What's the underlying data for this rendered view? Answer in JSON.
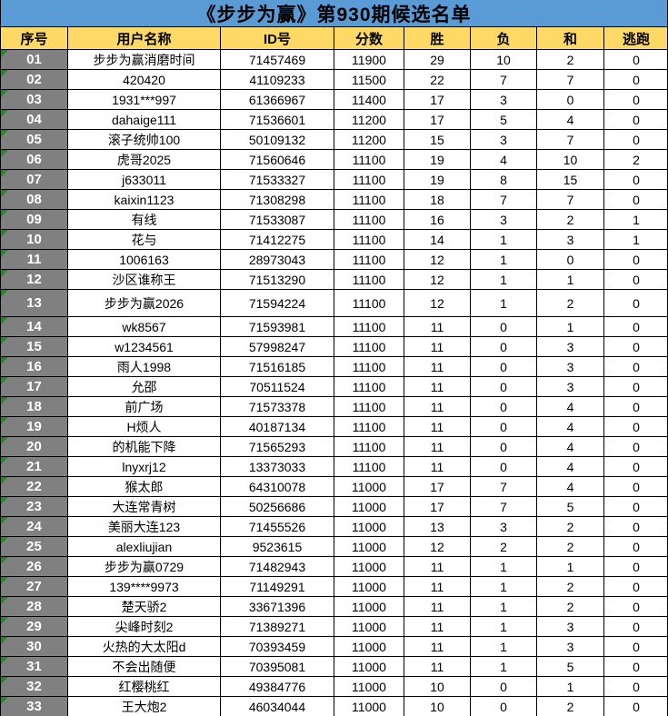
{
  "title": "《步步为赢》第930期候选名单",
  "columns": [
    "序号",
    "用户名称",
    "ID号",
    "分数",
    "胜",
    "负",
    "和",
    "逃跑"
  ],
  "colors": {
    "title_bg": "#5B9BD5",
    "header_bg": "#FFD966",
    "index_bg": "#808080",
    "index_text": "#FFFFFF",
    "flag_green": "#228B22",
    "border": "#000000"
  },
  "rows": [
    {
      "no": "01",
      "name": "步步为赢消磨时间",
      "id": "71457469",
      "score": "11900",
      "win": "29",
      "loss": "10",
      "draw": "2",
      "flee": "0"
    },
    {
      "no": "02",
      "name": "420420",
      "id": "41109233",
      "score": "11500",
      "win": "22",
      "loss": "7",
      "draw": "7",
      "flee": "0"
    },
    {
      "no": "03",
      "name": "1931***997",
      "id": "61366967",
      "score": "11400",
      "win": "17",
      "loss": "3",
      "draw": "0",
      "flee": "0"
    },
    {
      "no": "04",
      "name": "dahaige111",
      "id": "71536601",
      "score": "11200",
      "win": "17",
      "loss": "5",
      "draw": "4",
      "flee": "0"
    },
    {
      "no": "05",
      "name": "滚子统帅100",
      "id": "50109132",
      "score": "11200",
      "win": "15",
      "loss": "3",
      "draw": "7",
      "flee": "0"
    },
    {
      "no": "06",
      "name": "虎哥2025",
      "id": "71560646",
      "score": "11100",
      "win": "19",
      "loss": "4",
      "draw": "10",
      "flee": "2"
    },
    {
      "no": "07",
      "name": "j633011",
      "id": "71533327",
      "score": "11100",
      "win": "19",
      "loss": "8",
      "draw": "15",
      "flee": "0"
    },
    {
      "no": "08",
      "name": "kaixin1123",
      "id": "71308298",
      "score": "11100",
      "win": "18",
      "loss": "7",
      "draw": "7",
      "flee": "0"
    },
    {
      "no": "09",
      "name": "有线",
      "id": "71533087",
      "score": "11100",
      "win": "16",
      "loss": "3",
      "draw": "2",
      "flee": "1"
    },
    {
      "no": "10",
      "name": "花与",
      "id": "71412275",
      "score": "11100",
      "win": "14",
      "loss": "1",
      "draw": "3",
      "flee": "1"
    },
    {
      "no": "11",
      "name": "1006163",
      "id": "28973043",
      "score": "11100",
      "win": "12",
      "loss": "1",
      "draw": "0",
      "flee": "0"
    },
    {
      "no": "12",
      "name": "沙区谁称王",
      "id": "71513290",
      "score": "11100",
      "win": "12",
      "loss": "1",
      "draw": "1",
      "flee": "0"
    },
    {
      "no": "13",
      "name": "步步为赢2026",
      "id": "71594224",
      "score": "11100",
      "win": "12",
      "loss": "1",
      "draw": "2",
      "flee": "0"
    },
    {
      "no": "14",
      "name": "wk8567",
      "id": "71593981",
      "score": "11100",
      "win": "11",
      "loss": "0",
      "draw": "1",
      "flee": "0"
    },
    {
      "no": "15",
      "name": "w1234561",
      "id": "57998247",
      "score": "11100",
      "win": "11",
      "loss": "0",
      "draw": "3",
      "flee": "0"
    },
    {
      "no": "16",
      "name": "雨人1998",
      "id": "71516185",
      "score": "11100",
      "win": "11",
      "loss": "0",
      "draw": "3",
      "flee": "0"
    },
    {
      "no": "17",
      "name": "允邵",
      "id": "70511524",
      "score": "11100",
      "win": "11",
      "loss": "0",
      "draw": "3",
      "flee": "0"
    },
    {
      "no": "18",
      "name": "前广场",
      "id": "71573378",
      "score": "11100",
      "win": "11",
      "loss": "0",
      "draw": "4",
      "flee": "0"
    },
    {
      "no": "19",
      "name": "H烦人",
      "id": "40187134",
      "score": "11100",
      "win": "11",
      "loss": "0",
      "draw": "4",
      "flee": "0"
    },
    {
      "no": "20",
      "name": "的机能下降",
      "id": "71565293",
      "score": "11100",
      "win": "11",
      "loss": "0",
      "draw": "4",
      "flee": "0"
    },
    {
      "no": "21",
      "name": "lnyxrj12",
      "id": "13373033",
      "score": "11100",
      "win": "11",
      "loss": "0",
      "draw": "4",
      "flee": "0"
    },
    {
      "no": "22",
      "name": "猴太郎",
      "id": "64310078",
      "score": "11000",
      "win": "17",
      "loss": "7",
      "draw": "4",
      "flee": "0"
    },
    {
      "no": "23",
      "name": "大连常青树",
      "id": "50256686",
      "score": "11000",
      "win": "17",
      "loss": "7",
      "draw": "5",
      "flee": "0"
    },
    {
      "no": "24",
      "name": "美丽大连123",
      "id": "71455526",
      "score": "11000",
      "win": "13",
      "loss": "3",
      "draw": "2",
      "flee": "0"
    },
    {
      "no": "25",
      "name": "alexliujian",
      "id": "9523615",
      "score": "11000",
      "win": "12",
      "loss": "2",
      "draw": "2",
      "flee": "0"
    },
    {
      "no": "26",
      "name": "步步为赢0729",
      "id": "71482943",
      "score": "11000",
      "win": "11",
      "loss": "1",
      "draw": "1",
      "flee": "0"
    },
    {
      "no": "27",
      "name": "139****9973",
      "id": "71149291",
      "score": "11000",
      "win": "11",
      "loss": "1",
      "draw": "2",
      "flee": "0"
    },
    {
      "no": "28",
      "name": "楚天骄2",
      "id": "33671396",
      "score": "11000",
      "win": "11",
      "loss": "1",
      "draw": "2",
      "flee": "0"
    },
    {
      "no": "29",
      "name": "尖峰时刻2",
      "id": "71389271",
      "score": "11000",
      "win": "11",
      "loss": "1",
      "draw": "3",
      "flee": "0"
    },
    {
      "no": "30",
      "name": "火热的大太阳d",
      "id": "70393459",
      "score": "11000",
      "win": "11",
      "loss": "1",
      "draw": "3",
      "flee": "0"
    },
    {
      "no": "31",
      "name": "不会出随便",
      "id": "70395081",
      "score": "11000",
      "win": "11",
      "loss": "1",
      "draw": "5",
      "flee": "0"
    },
    {
      "no": "32",
      "name": "红樱桃红",
      "id": "49384776",
      "score": "11000",
      "win": "10",
      "loss": "0",
      "draw": "1",
      "flee": "0"
    },
    {
      "no": "33",
      "name": "王大炮2",
      "id": "46034044",
      "score": "11000",
      "win": "10",
      "loss": "0",
      "draw": "2",
      "flee": "0"
    }
  ]
}
